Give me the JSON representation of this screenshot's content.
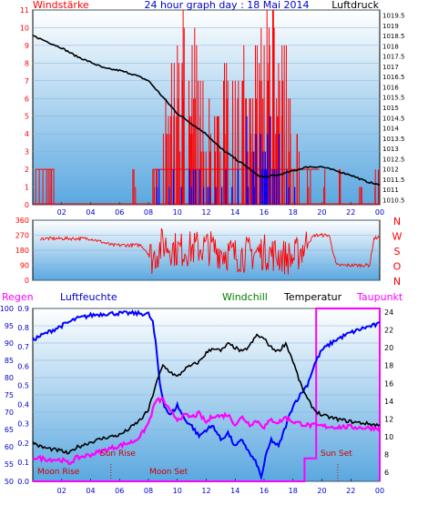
{
  "title": "24 hour graph day : 18 Mai 2014",
  "labels": {
    "windstaerke": "Windstärke",
    "luftdruck": "Luftdruck",
    "regen": "Regen",
    "luftfeuchte": "Luftfeuchte",
    "windchill": "Windchill",
    "temperatur": "Temperatur",
    "taupunkt": "Taupunkt",
    "sun_rise": "Sun Rise",
    "sun_set": "Sun Set",
    "moon_rise": "Moon Rise",
    "moon_set": "Moon Set"
  },
  "colors": {
    "wind": "#ff0000",
    "gust": "#0000ff",
    "pressure": "#000000",
    "humidity": "#0000ff",
    "temperature": "#000000",
    "dewpoint": "#ff00ff",
    "windchill": "#008000",
    "rain": "#ff00ff"
  },
  "chart_data": [
    {
      "type": "bar",
      "name": "wind-pressure",
      "x_ticks": [
        "02",
        "04",
        "06",
        "08",
        "10",
        "12",
        "14",
        "16",
        "18",
        "20",
        "22",
        "00"
      ],
      "left_ticks": [
        "0",
        "1",
        "2",
        "3",
        "4",
        "5",
        "6",
        "7",
        "8",
        "9",
        "10",
        "11"
      ],
      "right_ticks": [
        "1010.5",
        "1011",
        "1011.5",
        "1012",
        "1012.5",
        "1013",
        "1013.5",
        "1014",
        "1014.5",
        "1015",
        "1015.5",
        "1016",
        "1016.5",
        "1017",
        "1017.5",
        "1018",
        "1018.5",
        "1019",
        "1019.5"
      ],
      "ylim_wind": [
        0,
        11
      ],
      "ylim_pressure": [
        1010.25,
        1019.75
      ],
      "wind_peaks": [
        {
          "h": 1.3,
          "v": 2
        },
        {
          "h": 7.0,
          "v": 2
        },
        {
          "h": 8.3,
          "v": 2
        },
        {
          "h": 8.6,
          "v": 2
        },
        {
          "h": 9.2,
          "v": 6
        },
        {
          "h": 9.6,
          "v": 8
        },
        {
          "h": 10.0,
          "v": 9
        },
        {
          "h": 10.4,
          "v": 11
        },
        {
          "h": 10.8,
          "v": 7
        },
        {
          "h": 11.2,
          "v": 10
        },
        {
          "h": 11.6,
          "v": 7
        },
        {
          "h": 12.2,
          "v": 6
        },
        {
          "h": 12.8,
          "v": 5
        },
        {
          "h": 13.4,
          "v": 8
        },
        {
          "h": 14.0,
          "v": 7
        },
        {
          "h": 14.6,
          "v": 9
        },
        {
          "h": 15.0,
          "v": 6
        },
        {
          "h": 15.4,
          "v": 9
        },
        {
          "h": 15.8,
          "v": 10
        },
        {
          "h": 16.2,
          "v": 11
        },
        {
          "h": 16.6,
          "v": 11
        },
        {
          "h": 17.0,
          "v": 8
        },
        {
          "h": 17.4,
          "v": 9
        },
        {
          "h": 17.8,
          "v": 6
        },
        {
          "h": 18.3,
          "v": 4
        },
        {
          "h": 19.0,
          "v": 2
        },
        {
          "h": 20.2,
          "v": 2
        },
        {
          "h": 21.2,
          "v": 2
        },
        {
          "h": 22.6,
          "v": 1
        },
        {
          "h": 23.7,
          "v": 2
        }
      ],
      "pressure": [
        {
          "h": 0,
          "p": 1018.5
        },
        {
          "h": 1,
          "p": 1018.2
        },
        {
          "h": 2,
          "p": 1017.9
        },
        {
          "h": 3,
          "p": 1017.5
        },
        {
          "h": 4,
          "p": 1017.2
        },
        {
          "h": 5,
          "p": 1016.9
        },
        {
          "h": 6,
          "p": 1016.8
        },
        {
          "h": 7,
          "p": 1016.6
        },
        {
          "h": 8,
          "p": 1016.3
        },
        {
          "h": 9,
          "p": 1015.5
        },
        {
          "h": 10,
          "p": 1014.7
        },
        {
          "h": 11,
          "p": 1014.2
        },
        {
          "h": 12,
          "p": 1013.7
        },
        {
          "h": 13,
          "p": 1013.0
        },
        {
          "h": 14,
          "p": 1012.5
        },
        {
          "h": 15,
          "p": 1012.0
        },
        {
          "h": 15.5,
          "p": 1011.7
        },
        {
          "h": 16,
          "p": 1011.6
        },
        {
          "h": 17,
          "p": 1011.7
        },
        {
          "h": 18,
          "p": 1011.9
        },
        {
          "h": 19,
          "p": 1012.1
        },
        {
          "h": 20,
          "p": 1012.1
        },
        {
          "h": 21,
          "p": 1011.9
        },
        {
          "h": 22,
          "p": 1011.7
        },
        {
          "h": 23,
          "p": 1011.4
        },
        {
          "h": 24,
          "p": 1011.2
        }
      ]
    },
    {
      "type": "line",
      "name": "wind-direction",
      "y_ticks": [
        "0",
        "90",
        "180",
        "270",
        "360"
      ],
      "compass": [
        "N",
        "W",
        "S",
        "O",
        "N"
      ],
      "ylim": [
        0,
        360
      ],
      "direction": [
        {
          "h": 0.5,
          "d": 250
        },
        {
          "h": 4.0,
          "d": 250
        },
        {
          "h": 5.5,
          "d": 210
        },
        {
          "h": 7.5,
          "d": 210
        },
        {
          "h": 8.3,
          "d": 130
        },
        {
          "h": 9.0,
          "d": 220
        },
        {
          "h": 10.0,
          "d": 180
        },
        {
          "h": 12.0,
          "d": 200
        },
        {
          "h": 14.0,
          "d": 150
        },
        {
          "h": 16.0,
          "d": 170
        },
        {
          "h": 18.0,
          "d": 130
        },
        {
          "h": 19.5,
          "d": 270
        },
        {
          "h": 20.5,
          "d": 270
        },
        {
          "h": 21.0,
          "d": 90
        },
        {
          "h": 23.3,
          "d": 90
        },
        {
          "h": 23.6,
          "d": 250
        },
        {
          "h": 24.0,
          "d": 260
        }
      ]
    },
    {
      "type": "line",
      "name": "temperature-humidity",
      "left_ticks_rain": [
        "50",
        "55",
        "60",
        "65",
        "70",
        "75",
        "80",
        "85",
        "90",
        "95",
        "100"
      ],
      "left_ticks_humidity": [
        "0.0",
        "0.1",
        "0.2",
        "0.3",
        "0.4",
        "0.5",
        "0.6",
        "0.7",
        "0.8",
        "0.9"
      ],
      "right_ticks_temp": [
        "6",
        "8",
        "10",
        "12",
        "14",
        "16",
        "18",
        "20",
        "22",
        "24"
      ],
      "x_ticks": [
        "02",
        "04",
        "06",
        "08",
        "10",
        "12",
        "14",
        "16",
        "18",
        "20",
        "22",
        "00"
      ],
      "ylim_humidity": [
        50,
        100
      ],
      "ylim_temp": [
        5,
        24.4
      ],
      "humidity": [
        {
          "h": 0,
          "v": 91
        },
        {
          "h": 0.5,
          "v": 92
        },
        {
          "h": 1,
          "v": 93
        },
        {
          "h": 2,
          "v": 95
        },
        {
          "h": 3,
          "v": 97
        },
        {
          "h": 4,
          "v": 98
        },
        {
          "h": 5,
          "v": 98.5
        },
        {
          "h": 6,
          "v": 98.6
        },
        {
          "h": 7,
          "v": 98.6
        },
        {
          "h": 8,
          "v": 98.4
        },
        {
          "h": 8.3,
          "v": 96
        },
        {
          "h": 8.5,
          "v": 90
        },
        {
          "h": 8.8,
          "v": 78
        },
        {
          "h": 9.1,
          "v": 72
        },
        {
          "h": 9.5,
          "v": 69
        },
        {
          "h": 10,
          "v": 72
        },
        {
          "h": 10.5,
          "v": 68
        },
        {
          "h": 11,
          "v": 66
        },
        {
          "h": 11.5,
          "v": 63
        },
        {
          "h": 12,
          "v": 65
        },
        {
          "h": 12.5,
          "v": 66
        },
        {
          "h": 13,
          "v": 62
        },
        {
          "h": 13.5,
          "v": 64
        },
        {
          "h": 14,
          "v": 60
        },
        {
          "h": 14.5,
          "v": 62
        },
        {
          "h": 15,
          "v": 58
        },
        {
          "h": 15.5,
          "v": 55
        },
        {
          "h": 15.8,
          "v": 51
        },
        {
          "h": 16.1,
          "v": 57
        },
        {
          "h": 16.5,
          "v": 62
        },
        {
          "h": 17,
          "v": 60
        },
        {
          "h": 17.5,
          "v": 66
        },
        {
          "h": 18,
          "v": 72
        },
        {
          "h": 18.5,
          "v": 75
        },
        {
          "h": 19,
          "v": 78
        },
        {
          "h": 19.5,
          "v": 84
        },
        {
          "h": 20,
          "v": 88
        },
        {
          "h": 21,
          "v": 91
        },
        {
          "h": 22,
          "v": 93
        },
        {
          "h": 23,
          "v": 94.5
        },
        {
          "h": 24,
          "v": 95.5
        }
      ],
      "temperature": [
        {
          "h": 0,
          "t": 9.4
        },
        {
          "h": 0.5,
          "t": 8.9
        },
        {
          "h": 1,
          "t": 8.7
        },
        {
          "h": 2,
          "t": 8.4
        },
        {
          "h": 2.5,
          "t": 8.1
        },
        {
          "h": 3,
          "t": 8.8
        },
        {
          "h": 4,
          "t": 9.4
        },
        {
          "h": 5,
          "t": 9.9
        },
        {
          "h": 6,
          "t": 10.2
        },
        {
          "h": 6.5,
          "t": 10.7
        },
        {
          "h": 7,
          "t": 11.3
        },
        {
          "h": 7.5,
          "t": 12.0
        },
        {
          "h": 8,
          "t": 13.0
        },
        {
          "h": 8.5,
          "t": 15.8
        },
        {
          "h": 9,
          "t": 18.0
        },
        {
          "h": 9.5,
          "t": 17.3
        },
        {
          "h": 10,
          "t": 16.7
        },
        {
          "h": 10.5,
          "t": 17.6
        },
        {
          "h": 11,
          "t": 18.0
        },
        {
          "h": 11.5,
          "t": 18.4
        },
        {
          "h": 12,
          "t": 19.4
        },
        {
          "h": 12.5,
          "t": 20.0
        },
        {
          "h": 13,
          "t": 19.6
        },
        {
          "h": 13.5,
          "t": 20.4
        },
        {
          "h": 14,
          "t": 20.0
        },
        {
          "h": 14.5,
          "t": 19.5
        },
        {
          "h": 15,
          "t": 20.2
        },
        {
          "h": 15.5,
          "t": 21.4
        },
        {
          "h": 16,
          "t": 21.0
        },
        {
          "h": 16.5,
          "t": 20.0
        },
        {
          "h": 17,
          "t": 19.6
        },
        {
          "h": 17.5,
          "t": 20.5
        },
        {
          "h": 18,
          "t": 18.5
        },
        {
          "h": 18.5,
          "t": 16.0
        },
        {
          "h": 19,
          "t": 14.2
        },
        {
          "h": 19.5,
          "t": 13.0
        },
        {
          "h": 20,
          "t": 12.4
        },
        {
          "h": 21,
          "t": 12.0
        },
        {
          "h": 22,
          "t": 11.7
        },
        {
          "h": 23,
          "t": 11.5
        },
        {
          "h": 24,
          "t": 11.3
        }
      ],
      "dewpoint": [
        {
          "h": 0,
          "t": 7.7
        },
        {
          "h": 1,
          "t": 7.5
        },
        {
          "h": 2,
          "t": 7.4
        },
        {
          "h": 2.5,
          "t": 7.0
        },
        {
          "h": 3,
          "t": 7.6
        },
        {
          "h": 4,
          "t": 8.0
        },
        {
          "h": 5,
          "t": 8.5
        },
        {
          "h": 6,
          "t": 9.0
        },
        {
          "h": 7,
          "t": 9.5
        },
        {
          "h": 7.5,
          "t": 10.2
        },
        {
          "h": 8,
          "t": 11.5
        },
        {
          "h": 8.5,
          "t": 14.0
        },
        {
          "h": 9,
          "t": 14.2
        },
        {
          "h": 9.5,
          "t": 12.8
        },
        {
          "h": 10,
          "t": 12.0
        },
        {
          "h": 10.5,
          "t": 12.4
        },
        {
          "h": 11,
          "t": 12.2
        },
        {
          "h": 11.5,
          "t": 12.6
        },
        {
          "h": 12,
          "t": 11.6
        },
        {
          "h": 12.5,
          "t": 12.4
        },
        {
          "h": 13,
          "t": 12.3
        },
        {
          "h": 13.5,
          "t": 12.5
        },
        {
          "h": 14,
          "t": 11.4
        },
        {
          "h": 14.5,
          "t": 12.2
        },
        {
          "h": 15,
          "t": 11.4
        },
        {
          "h": 15.5,
          "t": 11.8
        },
        {
          "h": 16,
          "t": 11.1
        },
        {
          "h": 16.5,
          "t": 11.9
        },
        {
          "h": 17,
          "t": 11.6
        },
        {
          "h": 17.5,
          "t": 12.2
        },
        {
          "h": 18,
          "t": 11.7
        },
        {
          "h": 19,
          "t": 11.3
        },
        {
          "h": 20,
          "t": 11.2
        },
        {
          "h": 21,
          "t": 11.1
        },
        {
          "h": 22,
          "t": 11.1
        },
        {
          "h": 23,
          "t": 11.0
        },
        {
          "h": 24,
          "t": 11.0
        }
      ],
      "rain": [
        {
          "h": 0,
          "r": 0
        },
        {
          "h": 18.8,
          "r": 0
        },
        {
          "h": 18.8,
          "r": 0.12
        },
        {
          "h": 19.6,
          "r": 0.12
        },
        {
          "h": 19.6,
          "r": 0.9
        },
        {
          "h": 24,
          "r": 0.9
        }
      ],
      "sun_rise_hour": 5.4,
      "sun_set_hour": 21.1
    }
  ]
}
